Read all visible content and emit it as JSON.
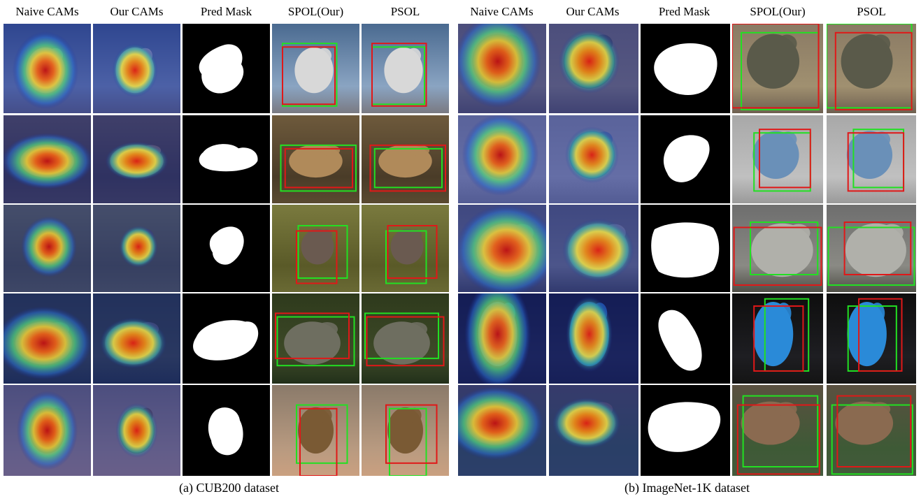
{
  "panels": [
    {
      "id": "a",
      "caption": "(a) CUB200 dataset",
      "headers": [
        "Naive CAMs",
        "Our CAMs",
        "Pred Mask",
        "SPOL(Our)",
        "PSOL"
      ],
      "rows": [
        {
          "bg": "#4a6a90",
          "bg2": "#8aa4c2",
          "ground": "#7a7a82",
          "obj": "#d8d8d8"
        },
        {
          "bg": "#6e5a3c",
          "bg2": "#4a3c28",
          "ground": "#5a4a30",
          "obj": "#b08a5a"
        },
        {
          "bg": "#7a7a3e",
          "bg2": "#5a5a28",
          "ground": "#6a6a34",
          "obj": "#6a5a50"
        },
        {
          "bg": "#2e3a1c",
          "bg2": "#3e4a28",
          "ground": "#22301a",
          "obj": "#6e6e60"
        },
        {
          "bg": "#8a7a6a",
          "bg2": "#b89a80",
          "ground": "#caa080",
          "obj": "#7a5a34"
        }
      ]
    },
    {
      "id": "b",
      "caption": "(b) ImageNet-1K dataset",
      "headers": [
        "Naive CAMs",
        "Our CAMs",
        "Pred Mask",
        "SPOL(Our)",
        "PSOL"
      ],
      "rows": [
        {
          "bg": "#8a7a64",
          "bg2": "#a09070",
          "ground": "#6e6050",
          "obj": "#5a5a4a"
        },
        {
          "bg": "#a8a8a8",
          "bg2": "#c0c0c0",
          "ground": "#9a9a9a",
          "obj": "#6a90b8"
        },
        {
          "bg": "#6e6e6e",
          "bg2": "#8a8a84",
          "ground": "#4e4e46",
          "obj": "#b0b0aa"
        },
        {
          "bg": "#0e0e0e",
          "bg2": "#1e1e22",
          "ground": "#141414",
          "obj": "#2a8ad8"
        },
        {
          "bg": "#5a5040",
          "bg2": "#3e5a36",
          "ground": "#445a3c",
          "obj": "#8a6a50"
        }
      ]
    }
  ]
}
